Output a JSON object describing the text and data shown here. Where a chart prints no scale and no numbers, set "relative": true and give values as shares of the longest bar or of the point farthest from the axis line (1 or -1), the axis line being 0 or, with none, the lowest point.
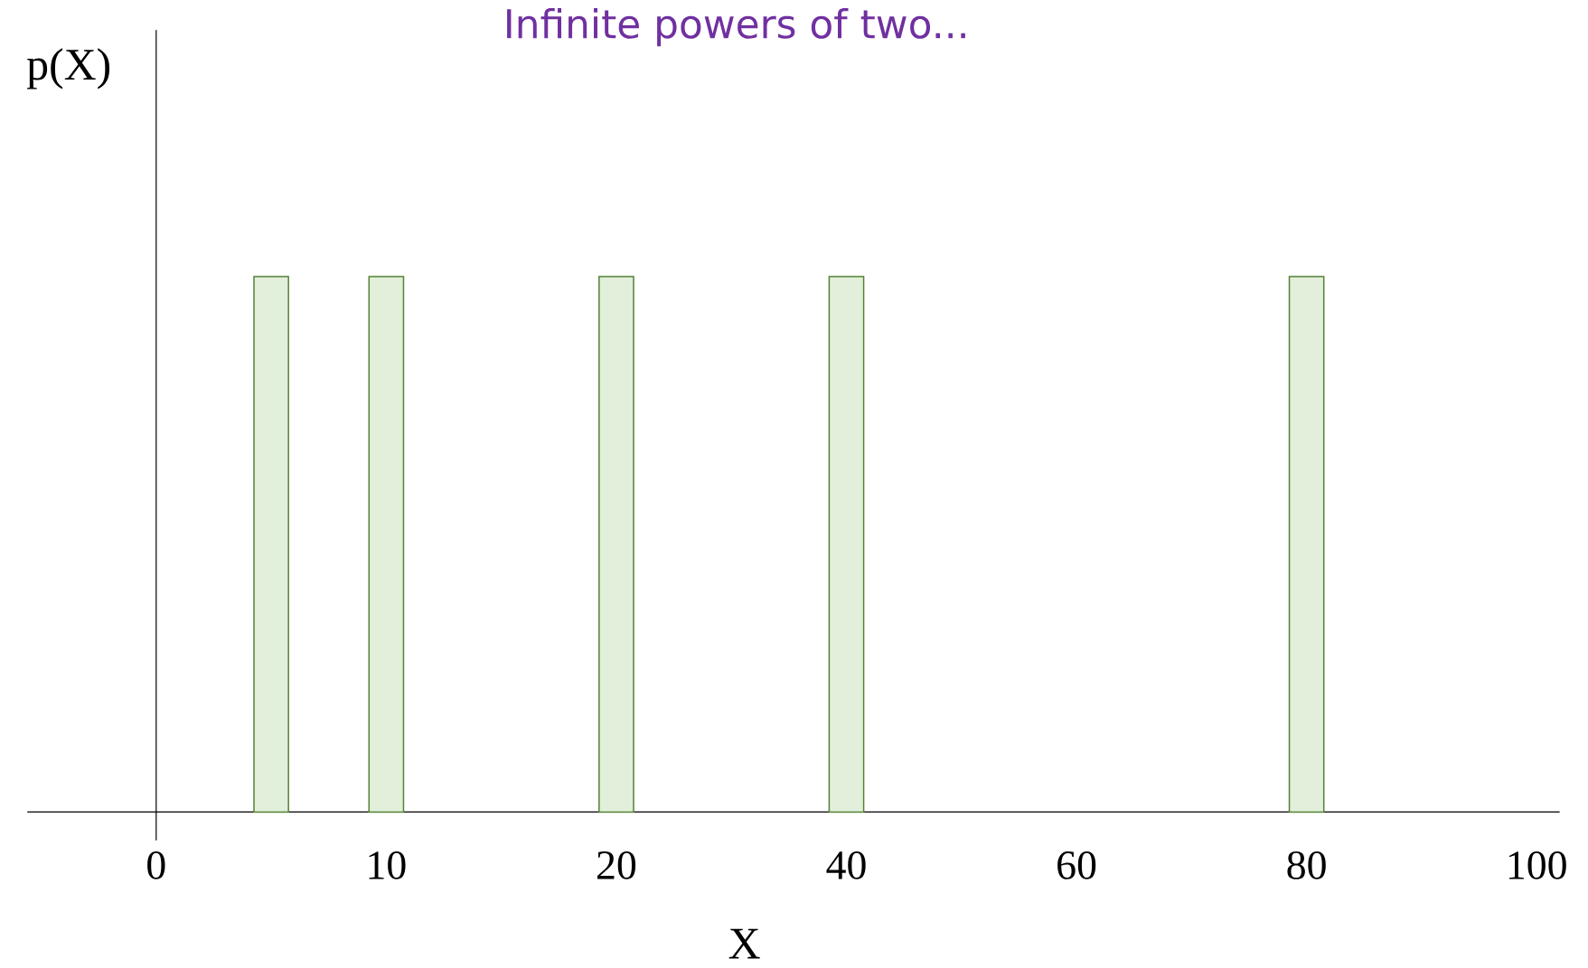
{
  "chart_data": {
    "type": "bar",
    "title": "Infinite powers of two...",
    "xlabel": "X",
    "ylabel": "p(X)",
    "relative": true,
    "categories": [
      "0",
      null,
      "10",
      null,
      "20",
      null,
      "40",
      null,
      "60",
      null,
      "80",
      null,
      "100"
    ],
    "values": [
      null,
      1,
      1,
      null,
      1,
      null,
      1,
      null,
      null,
      null,
      1,
      null,
      null
    ],
    "color": "#e2efda"
  }
}
